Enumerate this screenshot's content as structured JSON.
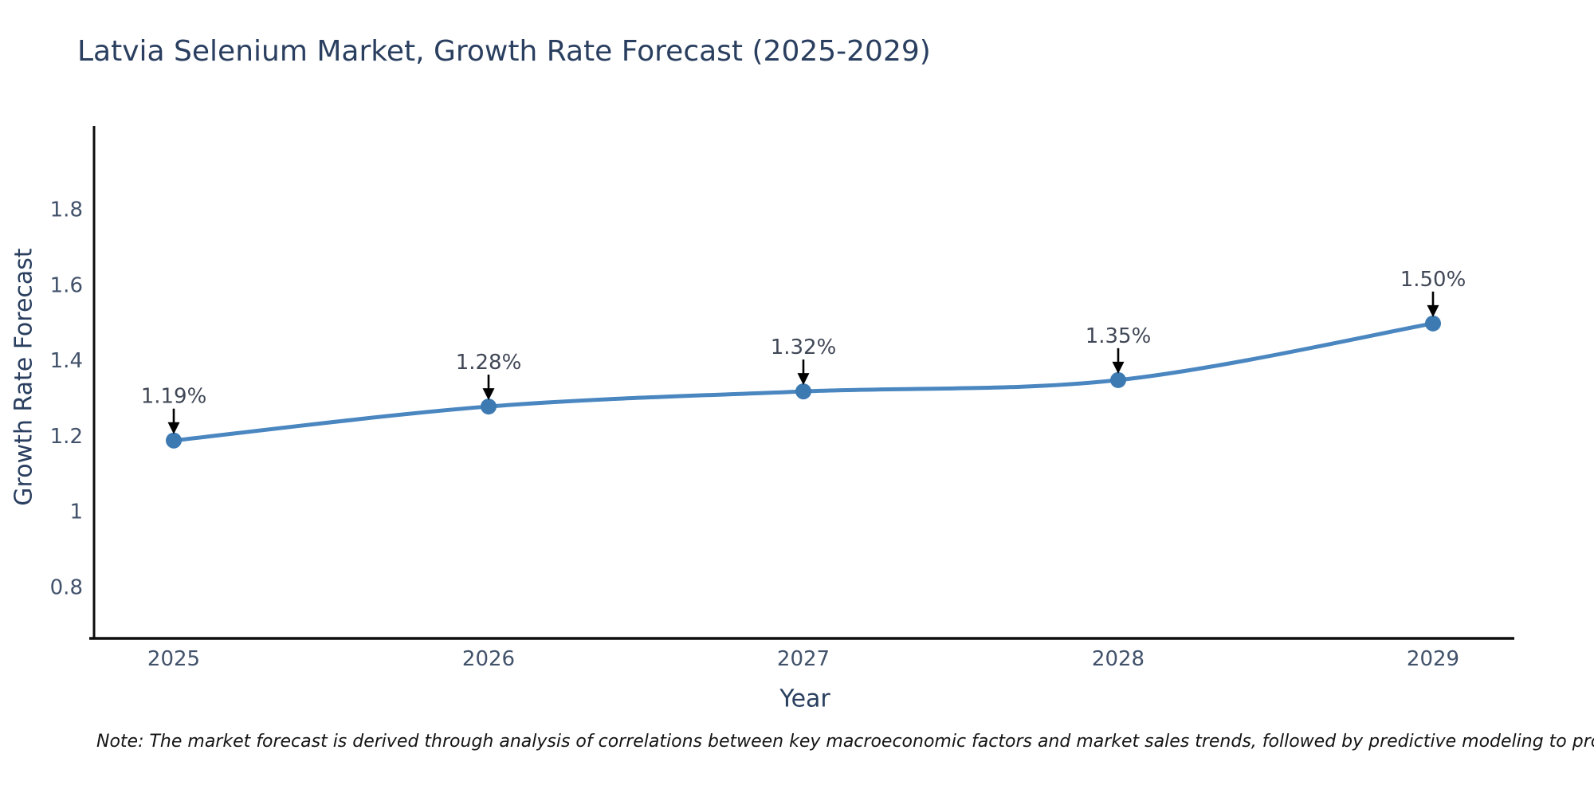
{
  "title": "Latvia Selenium Market, Growth Rate Forecast (2025-2029)",
  "note": "Note: The market forecast is derived through analysis of correlations between key macroeconomic factors and market sales trends, followed by predictive modeling to project future sales",
  "colors": {
    "title": "#2a3f5f",
    "axis_title": "#2a3f5f",
    "tick_label": "#42526b",
    "annotation_label": "#404756",
    "line": "#4a86c0",
    "marker_fill": "#3d7ab2",
    "axis_line": "#0d0d0d",
    "arrow": "#000000"
  },
  "chart_data": {
    "type": "line",
    "title": "Latvia Selenium Market, Growth Rate Forecast (2025-2029)",
    "xlabel": "Year",
    "ylabel": "Growth Rate Forecast",
    "categories": [
      "2025",
      "2026",
      "2027",
      "2028",
      "2029"
    ],
    "values": [
      1.19,
      1.28,
      1.32,
      1.35,
      1.5
    ],
    "point_labels": [
      "1.19%",
      "1.28%",
      "1.32%",
      "1.35%",
      "1.50%"
    ],
    "yticks": [
      0.8,
      1,
      1.2,
      1.4,
      1.6,
      1.8
    ],
    "ytick_labels": [
      "0.8",
      "1",
      "1.2",
      "1.4",
      "1.6",
      "1.8"
    ],
    "ylim": [
      0.666,
      2.023
    ],
    "grid": false,
    "legend": null,
    "line_style": "spline",
    "marker": "circle",
    "annotations": "value labels with downward arrows above each point"
  }
}
